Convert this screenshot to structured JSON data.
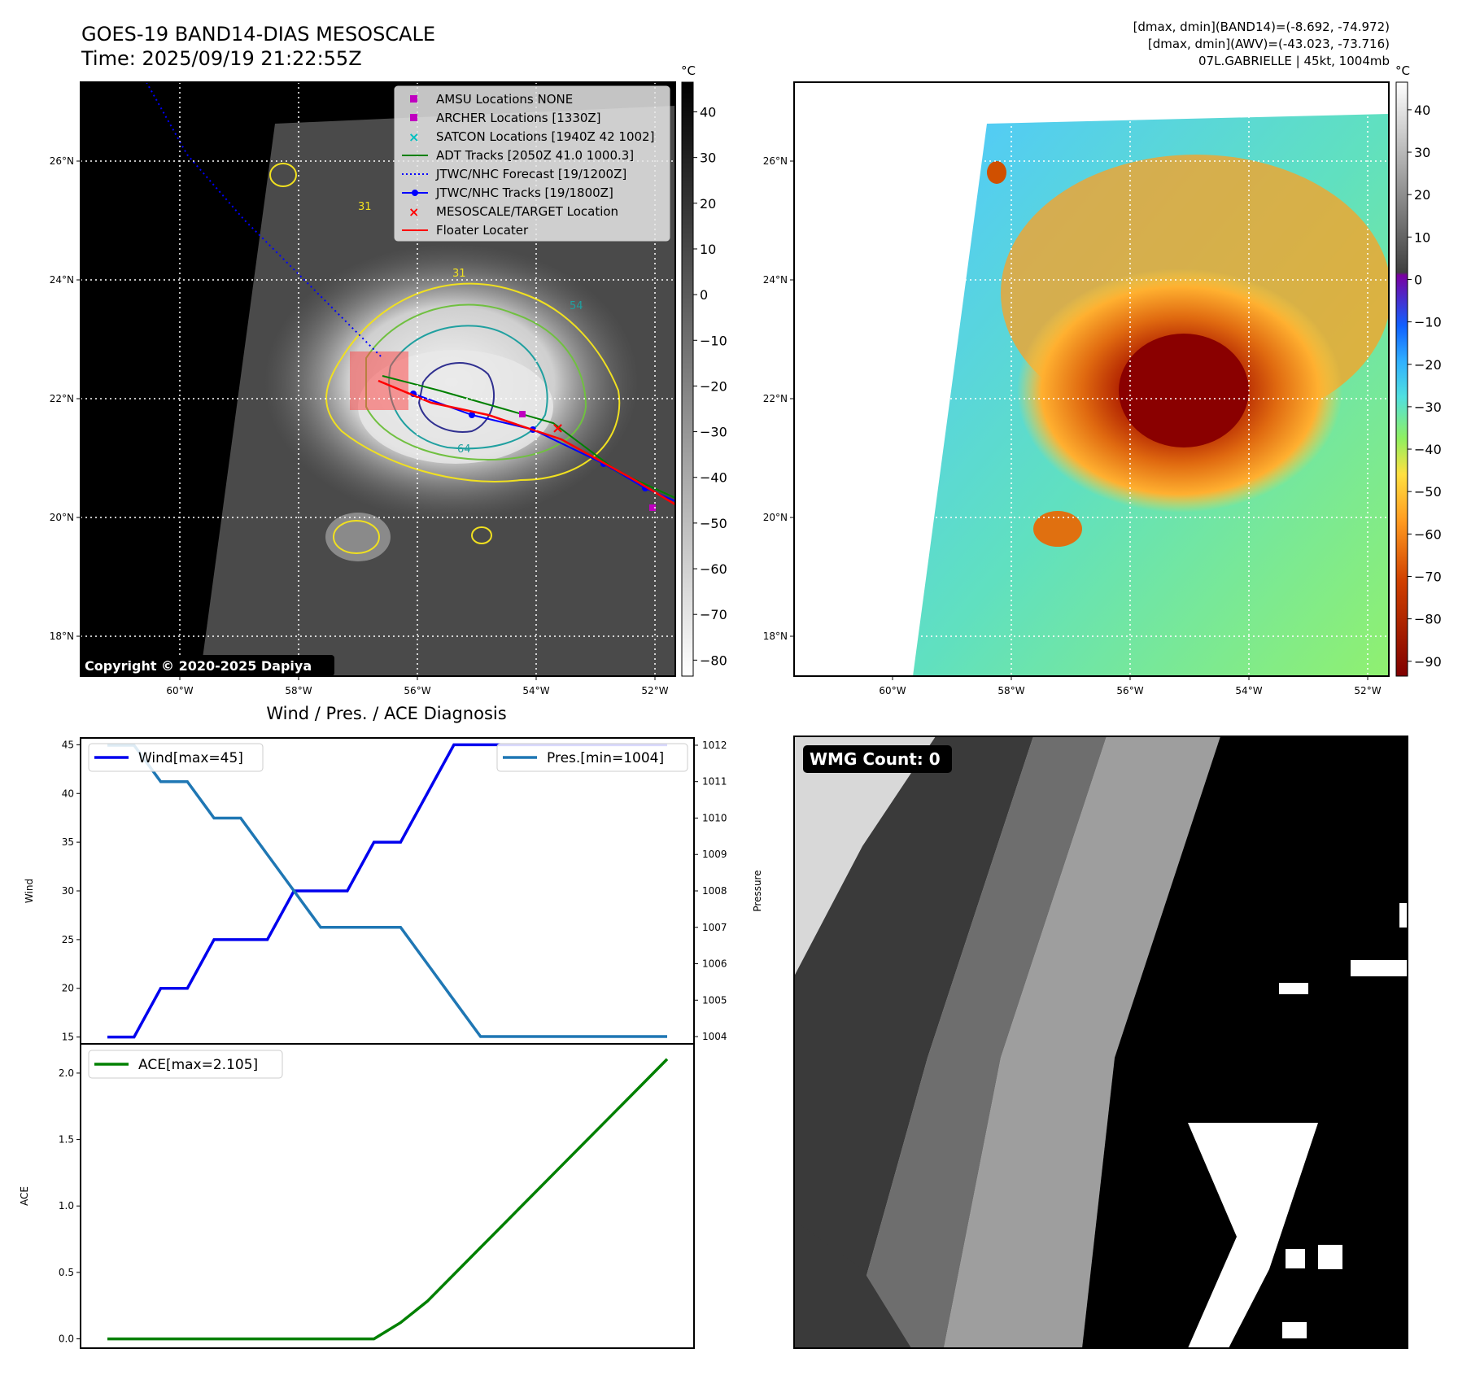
{
  "header": {
    "title": "GOES-19 BAND14-DIAS MESOSCALE",
    "time": "Time: 2025/09/19 21:22:55Z",
    "stats_band14": "[dmax, dmin](BAND14)=(-8.692, -74.972)",
    "stats_awv": "[dmax, dmin](AWV)=(-43.023, -73.716)",
    "storm": "07L.GABRIELLE | 45kt, 1004mb"
  },
  "map_axes": {
    "lat_labels": [
      "26°N",
      "24°N",
      "22°N",
      "20°N",
      "18°N"
    ],
    "lon_labels": [
      "60°W",
      "58°W",
      "56°W",
      "54°W",
      "52°W"
    ]
  },
  "colorbar_left": {
    "unit": "°C",
    "ticks": [
      "40",
      "30",
      "20",
      "10",
      "0",
      "−10",
      "−20",
      "−30",
      "−40",
      "−50",
      "−60",
      "−70",
      "−80"
    ]
  },
  "colorbar_right": {
    "unit": "°C",
    "ticks": [
      "40",
      "30",
      "20",
      "10",
      "0",
      "−10",
      "−20",
      "−30",
      "−40",
      "−50",
      "−60",
      "−70",
      "−80",
      "−90"
    ]
  },
  "legend": {
    "items": [
      {
        "label": "AMSU Locations NONE",
        "color": "#c000c0",
        "marker": "square"
      },
      {
        "label": "ARCHER Locations [1330Z]",
        "color": "#c000c0",
        "marker": "square"
      },
      {
        "label": "SATCON Locations [1940Z 42 1002]",
        "color": "#00c0c0",
        "marker": "x"
      },
      {
        "label": "ADT Tracks [2050Z 41.0 1000.3]",
        "color": "#008000",
        "marker": "line"
      },
      {
        "label": "JTWC/NHC Forecast [19/1200Z]",
        "color": "#0000ff",
        "marker": "dotted"
      },
      {
        "label": "JTWC/NHC Tracks [19/1800Z]",
        "color": "#0000ff",
        "marker": "line-dot"
      },
      {
        "label": "MESOSCALE/TARGET Location",
        "color": "#ff0000",
        "marker": "x"
      },
      {
        "label": "Floater Locater",
        "color": "#ff0000",
        "marker": "line"
      }
    ]
  },
  "contour_labels": [
    "31",
    "31",
    "54",
    "64"
  ],
  "copyright": "Copyright © 2020-2025 Dapiya",
  "wmg_label": "WMG Count: 0",
  "chart_data": [
    {
      "type": "line",
      "title": "Wind / Pres. / ACE Diagnosis",
      "ylabel": "Wind",
      "y2label": "Pressure",
      "ylim": [
        14.3,
        45.7
      ],
      "y2lim": [
        1003.8,
        1012.2
      ],
      "yticks": [
        15,
        20,
        25,
        30,
        35,
        40,
        45
      ],
      "y2ticks": [
        1004,
        1005,
        1006,
        1007,
        1008,
        1009,
        1010,
        1011,
        1012
      ],
      "x": [
        0,
        1,
        2,
        3,
        4,
        5,
        6,
        7,
        8,
        9,
        10,
        11,
        12,
        13,
        14,
        15,
        16,
        17,
        18,
        19,
        20,
        21
      ],
      "series": [
        {
          "name": "Wind[max=45]",
          "axis": "left",
          "color": "#0000ee",
          "values": [
            15,
            15,
            20,
            20,
            25,
            25,
            25,
            30,
            30,
            30,
            35,
            35,
            40,
            45,
            45,
            45,
            45,
            45,
            45,
            45,
            45,
            45
          ]
        },
        {
          "name": "Pres.[min=1004]",
          "axis": "right",
          "color": "#1f77b4",
          "values": [
            1012,
            1012,
            1011,
            1011,
            1010,
            1010,
            1009,
            1008,
            1007,
            1007,
            1007,
            1007,
            1006,
            1005,
            1004,
            1004,
            1004,
            1004,
            1004,
            1004,
            1004,
            1004
          ]
        }
      ]
    },
    {
      "type": "line",
      "ylabel": "ACE",
      "ylim": [
        -0.07,
        2.22
      ],
      "yticks": [
        "0.0",
        "0.5",
        "1.0",
        "1.5",
        "2.0"
      ],
      "x": [
        0,
        1,
        2,
        3,
        4,
        5,
        6,
        7,
        8,
        9,
        10,
        11,
        12,
        13,
        14,
        15,
        16,
        17,
        18,
        19,
        20,
        21
      ],
      "series": [
        {
          "name": "ACE[max=2.105]",
          "color": "#008000",
          "values": [
            0,
            0,
            0,
            0,
            0,
            0,
            0,
            0,
            0,
            0,
            0,
            0.1225,
            0.2825,
            0.485,
            0.6875,
            0.89,
            1.0925,
            1.295,
            1.4975,
            1.7,
            1.9025,
            2.105
          ]
        }
      ]
    }
  ]
}
